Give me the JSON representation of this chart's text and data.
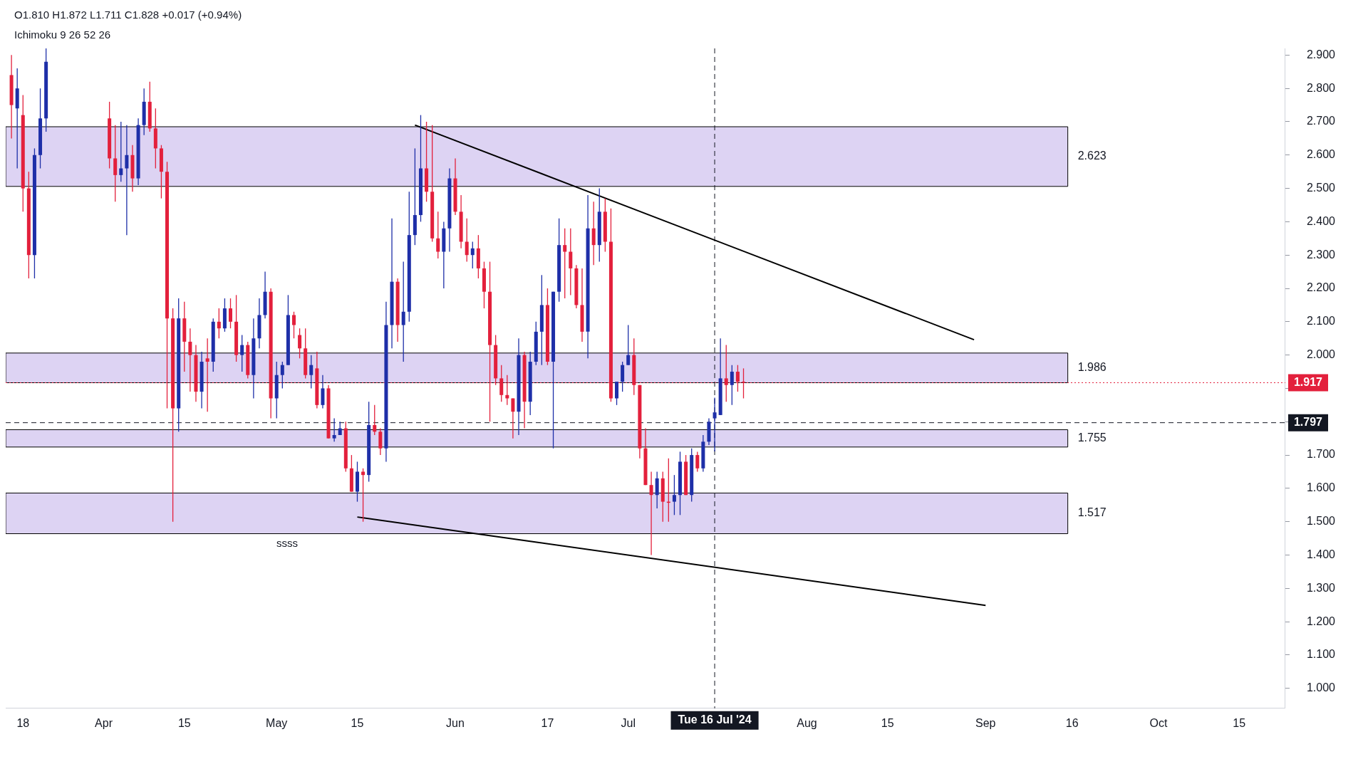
{
  "chart_data": {
    "type": "candlestick",
    "x": [
      "2024-03-16",
      "2024-03-17",
      "2024-03-18",
      "2024-03-19",
      "2024-03-20",
      "2024-03-21",
      "2024-03-22",
      "2024-04-02",
      "2024-04-03",
      "2024-04-04",
      "2024-04-05",
      "2024-04-06",
      "2024-04-07",
      "2024-04-08",
      "2024-04-09",
      "2024-04-10",
      "2024-04-11",
      "2024-04-12",
      "2024-04-13",
      "2024-04-14",
      "2024-04-15",
      "2024-04-16",
      "2024-04-17",
      "2024-04-18",
      "2024-04-19",
      "2024-04-20",
      "2024-04-21",
      "2024-04-22",
      "2024-04-23",
      "2024-04-24",
      "2024-04-25",
      "2024-04-26",
      "2024-04-27",
      "2024-04-28",
      "2024-04-29",
      "2024-04-30",
      "2024-05-01",
      "2024-05-02",
      "2024-05-03",
      "2024-05-04",
      "2024-05-05",
      "2024-05-06",
      "2024-05-07",
      "2024-05-08",
      "2024-05-09",
      "2024-05-10",
      "2024-05-11",
      "2024-05-12",
      "2024-05-13",
      "2024-05-14",
      "2024-05-15",
      "2024-05-16",
      "2024-05-17",
      "2024-05-18",
      "2024-05-19",
      "2024-05-20",
      "2024-05-21",
      "2024-05-22",
      "2024-05-23",
      "2024-05-24",
      "2024-05-25",
      "2024-05-26",
      "2024-05-27",
      "2024-05-28",
      "2024-05-29",
      "2024-05-30",
      "2024-05-31",
      "2024-06-01",
      "2024-06-02",
      "2024-06-03",
      "2024-06-04",
      "2024-06-05",
      "2024-06-06",
      "2024-06-07",
      "2024-06-08",
      "2024-06-09",
      "2024-06-10",
      "2024-06-11",
      "2024-06-12",
      "2024-06-13",
      "2024-06-14",
      "2024-06-15",
      "2024-06-16",
      "2024-06-17",
      "2024-06-18",
      "2024-06-19",
      "2024-06-20",
      "2024-06-21",
      "2024-06-22",
      "2024-06-23",
      "2024-06-24",
      "2024-06-25",
      "2024-06-26",
      "2024-06-27",
      "2024-06-28",
      "2024-06-29",
      "2024-06-30",
      "2024-07-01",
      "2024-07-02",
      "2024-07-03",
      "2024-07-04",
      "2024-07-05",
      "2024-07-06",
      "2024-07-07",
      "2024-07-08",
      "2024-07-09",
      "2024-07-10",
      "2024-07-11",
      "2024-07-12",
      "2024-07-13",
      "2024-07-14",
      "2024-07-15",
      "2024-07-16",
      "2024-07-17",
      "2024-07-18",
      "2024-07-19",
      "2024-07-20",
      "2024-07-21"
    ],
    "ohlc": [
      [
        2.84,
        2.9,
        2.65,
        2.75
      ],
      [
        2.74,
        2.86,
        2.56,
        2.8
      ],
      [
        2.72,
        2.78,
        2.43,
        2.5
      ],
      [
        2.5,
        2.55,
        2.23,
        2.3
      ],
      [
        2.3,
        2.62,
        2.23,
        2.6
      ],
      [
        2.6,
        2.8,
        2.56,
        2.71
      ],
      [
        2.71,
        2.92,
        2.67,
        2.88
      ],
      [
        2.71,
        2.76,
        2.56,
        2.59
      ],
      [
        2.59,
        2.69,
        2.46,
        2.54
      ],
      [
        2.54,
        2.7,
        2.52,
        2.56
      ],
      [
        2.56,
        2.69,
        2.36,
        2.6
      ],
      [
        2.6,
        2.63,
        2.49,
        2.53
      ],
      [
        2.53,
        2.71,
        2.51,
        2.69
      ],
      [
        2.69,
        2.8,
        2.66,
        2.76
      ],
      [
        2.76,
        2.82,
        2.67,
        2.68
      ],
      [
        2.68,
        2.74,
        2.56,
        2.62
      ],
      [
        2.62,
        2.63,
        2.47,
        2.55
      ],
      [
        2.55,
        2.58,
        1.84,
        2.11
      ],
      [
        2.11,
        2.14,
        1.5,
        1.84
      ],
      [
        1.84,
        2.17,
        1.77,
        2.11
      ],
      [
        2.11,
        2.16,
        1.95,
        2.04
      ],
      [
        2.04,
        2.08,
        1.89,
        2.0
      ],
      [
        2.0,
        2.03,
        1.86,
        1.89
      ],
      [
        1.89,
        2.01,
        1.84,
        1.98
      ],
      [
        1.99,
        2.05,
        1.83,
        1.98
      ],
      [
        1.98,
        2.11,
        1.95,
        2.1
      ],
      [
        2.1,
        2.14,
        2.05,
        2.08
      ],
      [
        2.08,
        2.17,
        2.07,
        2.14
      ],
      [
        2.14,
        2.17,
        2.08,
        2.1
      ],
      [
        2.1,
        2.18,
        1.98,
        2.0
      ],
      [
        2.0,
        2.06,
        1.95,
        2.03
      ],
      [
        2.03,
        2.04,
        1.93,
        1.94
      ],
      [
        1.94,
        2.11,
        1.87,
        2.05
      ],
      [
        2.05,
        2.17,
        2.02,
        2.12
      ],
      [
        2.12,
        2.25,
        2.11,
        2.19
      ],
      [
        2.19,
        2.2,
        1.81,
        1.87
      ],
      [
        1.87,
        1.98,
        1.81,
        1.94
      ],
      [
        1.94,
        1.98,
        1.9,
        1.97
      ],
      [
        1.97,
        2.18,
        1.97,
        2.12
      ],
      [
        2.12,
        2.13,
        2.05,
        2.09
      ],
      [
        2.06,
        2.08,
        1.99,
        2.02
      ],
      [
        2.02,
        2.08,
        1.93,
        1.94
      ],
      [
        1.94,
        2.0,
        1.9,
        1.97
      ],
      [
        1.96,
        2.01,
        1.84,
        1.85
      ],
      [
        1.85,
        1.94,
        1.84,
        1.9
      ],
      [
        1.9,
        1.91,
        1.75,
        1.75
      ],
      [
        1.75,
        1.81,
        1.74,
        1.76
      ],
      [
        1.76,
        1.8,
        1.76,
        1.78
      ],
      [
        1.78,
        1.8,
        1.65,
        1.66
      ],
      [
        1.66,
        1.7,
        1.59,
        1.59
      ],
      [
        1.59,
        1.68,
        1.56,
        1.65
      ],
      [
        1.65,
        1.66,
        1.5,
        1.64
      ],
      [
        1.64,
        1.86,
        1.62,
        1.79
      ],
      [
        1.79,
        1.85,
        1.76,
        1.77
      ],
      [
        1.77,
        1.78,
        1.7,
        1.72
      ],
      [
        1.72,
        2.16,
        1.68,
        2.09
      ],
      [
        2.09,
        2.41,
        2.02,
        2.22
      ],
      [
        2.22,
        2.23,
        2.04,
        2.09
      ],
      [
        2.09,
        2.28,
        1.98,
        2.13
      ],
      [
        2.13,
        2.49,
        2.1,
        2.36
      ],
      [
        2.36,
        2.62,
        2.33,
        2.42
      ],
      [
        2.42,
        2.72,
        2.4,
        2.56
      ],
      [
        2.56,
        2.7,
        2.46,
        2.49
      ],
      [
        2.49,
        2.69,
        2.34,
        2.35
      ],
      [
        2.35,
        2.43,
        2.29,
        2.31
      ],
      [
        2.31,
        2.4,
        2.2,
        2.38
      ],
      [
        2.38,
        2.56,
        2.31,
        2.53
      ],
      [
        2.53,
        2.59,
        2.42,
        2.43
      ],
      [
        2.43,
        2.48,
        2.32,
        2.34
      ],
      [
        2.34,
        2.41,
        2.28,
        2.3
      ],
      [
        2.3,
        2.34,
        2.26,
        2.32
      ],
      [
        2.32,
        2.36,
        2.23,
        2.26
      ],
      [
        2.26,
        2.28,
        2.14,
        2.19
      ],
      [
        2.19,
        2.28,
        1.8,
        2.03
      ],
      [
        2.03,
        2.06,
        1.91,
        1.93
      ],
      [
        1.93,
        1.97,
        1.86,
        1.88
      ],
      [
        1.88,
        1.94,
        1.85,
        1.87
      ],
      [
        1.87,
        1.87,
        1.75,
        1.83
      ],
      [
        1.83,
        2.05,
        1.76,
        2.0
      ],
      [
        2.0,
        2.01,
        1.78,
        1.86
      ],
      [
        1.86,
        2.01,
        1.82,
        1.98
      ],
      [
        1.98,
        2.1,
        1.97,
        2.07
      ],
      [
        2.07,
        2.24,
        1.97,
        2.15
      ],
      [
        2.15,
        2.2,
        1.97,
        1.98
      ],
      [
        1.98,
        2.19,
        1.72,
        2.19
      ],
      [
        2.19,
        2.41,
        2.16,
        2.33
      ],
      [
        2.33,
        2.38,
        2.17,
        2.31
      ],
      [
        2.31,
        2.38,
        2.18,
        2.26
      ],
      [
        2.26,
        2.27,
        2.14,
        2.15
      ],
      [
        2.15,
        2.26,
        2.04,
        2.07
      ],
      [
        2.07,
        2.48,
        1.99,
        2.38
      ],
      [
        2.38,
        2.46,
        2.27,
        2.33
      ],
      [
        2.33,
        2.5,
        2.28,
        2.43
      ],
      [
        2.43,
        2.47,
        2.31,
        2.34
      ],
      [
        2.34,
        2.44,
        1.86,
        1.87
      ],
      [
        1.87,
        1.92,
        1.85,
        1.92
      ],
      [
        1.92,
        1.98,
        1.89,
        1.97
      ],
      [
        1.97,
        2.09,
        1.97,
        2.0
      ],
      [
        2.0,
        2.05,
        1.88,
        1.91
      ],
      [
        1.91,
        1.91,
        1.69,
        1.72
      ],
      [
        1.72,
        1.78,
        1.61,
        1.61
      ],
      [
        1.61,
        1.65,
        1.4,
        1.58
      ],
      [
        1.58,
        1.65,
        1.54,
        1.63
      ],
      [
        1.63,
        1.65,
        1.5,
        1.56
      ],
      [
        1.56,
        1.69,
        1.5,
        1.56
      ],
      [
        1.56,
        1.64,
        1.52,
        1.58
      ],
      [
        1.58,
        1.71,
        1.52,
        1.68
      ],
      [
        1.68,
        1.7,
        1.58,
        1.58
      ],
      [
        1.58,
        1.72,
        1.56,
        1.7
      ],
      [
        1.7,
        1.71,
        1.65,
        1.66
      ],
      [
        1.66,
        1.76,
        1.65,
        1.74
      ],
      [
        1.74,
        1.81,
        1.73,
        1.8
      ],
      [
        1.81,
        1.872,
        1.711,
        1.828
      ],
      [
        1.82,
        2.05,
        1.82,
        1.93
      ],
      [
        1.93,
        2.03,
        1.86,
        1.91
      ],
      [
        1.91,
        1.97,
        1.85,
        1.95
      ],
      [
        1.95,
        1.97,
        1.89,
        1.92
      ],
      [
        1.92,
        1.96,
        1.87,
        1.917
      ]
    ],
    "colors": [
      "#e3203c",
      "#1e2fa8",
      "#e3203c",
      "#e3203c",
      "#1e2fa8",
      "#1e2fa8",
      "#1e2fa8",
      "#e3203c",
      "#e3203c",
      "#1e2fa8",
      "#1e2fa8",
      "#e3203c",
      "#1e2fa8",
      "#1e2fa8",
      "#e3203c",
      "#e3203c",
      "#e3203c",
      "#e3203c",
      "#e3203c",
      "#1e2fa8",
      "#e3203c",
      "#e3203c",
      "#e3203c",
      "#1e2fa8",
      "#e3203c",
      "#1e2fa8",
      "#e3203c",
      "#1e2fa8",
      "#e3203c",
      "#e3203c",
      "#1e2fa8",
      "#e3203c",
      "#1e2fa8",
      "#1e2fa8",
      "#1e2fa8",
      "#e3203c",
      "#1e2fa8",
      "#1e2fa8",
      "#1e2fa8",
      "#e3203c",
      "#e3203c",
      "#e3203c",
      "#1e2fa8",
      "#e3203c",
      "#1e2fa8",
      "#e3203c",
      "#1e2fa8",
      "#1e2fa8",
      "#e3203c",
      "#e3203c",
      "#1e2fa8",
      "#e3203c",
      "#1e2fa8",
      "#e3203c",
      "#e3203c",
      "#1e2fa8",
      "#1e2fa8",
      "#e3203c",
      "#1e2fa8",
      "#1e2fa8",
      "#1e2fa8",
      "#1e2fa8",
      "#e3203c",
      "#e3203c",
      "#e3203c",
      "#1e2fa8",
      "#1e2fa8",
      "#e3203c",
      "#e3203c",
      "#e3203c",
      "#1e2fa8",
      "#e3203c",
      "#e3203c",
      "#e3203c",
      "#e3203c",
      "#e3203c",
      "#e3203c",
      "#e3203c",
      "#1e2fa8",
      "#e3203c",
      "#1e2fa8",
      "#1e2fa8",
      "#1e2fa8",
      "#e3203c",
      "#1e2fa8",
      "#1e2fa8",
      "#e3203c",
      "#e3203c",
      "#e3203c",
      "#e3203c",
      "#1e2fa8",
      "#e3203c",
      "#1e2fa8",
      "#e3203c",
      "#e3203c",
      "#1e2fa8",
      "#1e2fa8",
      "#1e2fa8",
      "#e3203c",
      "#e3203c",
      "#e3203c",
      "#e3203c",
      "#1e2fa8",
      "#e3203c",
      "#e3203c",
      "#1e2fa8",
      "#1e2fa8",
      "#e3203c",
      "#1e2fa8",
      "#e3203c",
      "#1e2fa8",
      "#1e2fa8",
      "#1e2fa8",
      "#1e2fa8",
      "#e3203c",
      "#1e2fa8",
      "#e3203c",
      "#e3203c"
    ],
    "series": [
      {
        "type": "line",
        "color": "#000000",
        "x": [
          "2024-05-25",
          "2024-08-30"
        ],
        "values": [
          2.69,
          2.046
        ]
      },
      {
        "type": "line",
        "color": "#000000",
        "x": [
          "2024-05-15",
          "2024-09-01"
        ],
        "values": [
          1.514,
          1.249
        ]
      }
    ],
    "bands": [
      {
        "axis": "y",
        "from": 2.506,
        "to": 2.685,
        "label": "2.623",
        "color": "#ddd3f3"
      },
      {
        "axis": "y",
        "from": 1.917,
        "to": 2.006,
        "label": "1.986",
        "color": "#ddd3f3"
      },
      {
        "axis": "y",
        "from": 1.724,
        "to": 1.776,
        "label": "1.755",
        "color": "#ddd3f3"
      },
      {
        "axis": "y",
        "from": 1.464,
        "to": 1.586,
        "label": "1.517",
        "color": "#ddd3f3"
      }
    ],
    "ref_lines": [
      {
        "axis": "y",
        "value": 1.917,
        "label": "1.917",
        "color": "#e3203c",
        "line_style": "dotted"
      },
      {
        "axis": "y",
        "value": 1.797,
        "label": "1.797",
        "color": "#131722",
        "line_style": "dashed"
      },
      {
        "axis": "x",
        "value": "2024-07-16",
        "label": "Tue 16 Jul '24",
        "color": "#131722",
        "line_style": "dashed"
      }
    ],
    "annotations": [
      "O1.810 H1.872 L1.711 C1.828 +0.017 (+0.94%)",
      "Ichimoku 9 26 52 26",
      "ssss"
    ],
    "xlim": [
      "2024-03-15",
      "2024-10-23"
    ],
    "xticks": [
      {
        "value": "2024-03-18",
        "label": "18"
      },
      {
        "value": "2024-04-01",
        "label": "Apr"
      },
      {
        "value": "2024-04-15",
        "label": "15"
      },
      {
        "value": "2024-05-01",
        "label": "May"
      },
      {
        "value": "2024-05-15",
        "label": "15"
      },
      {
        "value": "2024-06-01",
        "label": "Jun"
      },
      {
        "value": "2024-06-17",
        "label": "17"
      },
      {
        "value": "2024-07-01",
        "label": "Jul"
      },
      {
        "value": "2024-08-01",
        "label": "Aug"
      },
      {
        "value": "2024-08-15",
        "label": "15"
      },
      {
        "value": "2024-09-01",
        "label": "Sep"
      },
      {
        "value": "2024-09-16",
        "label": "16"
      },
      {
        "value": "2024-10-01",
        "label": "Oct"
      },
      {
        "value": "2024-10-15",
        "label": "15"
      }
    ],
    "ylim": [
      0.94,
      2.92
    ],
    "yticks": [
      {
        "value": 1.0,
        "label": "1.000"
      },
      {
        "value": 1.1,
        "label": "1.100"
      },
      {
        "value": 1.2,
        "label": "1.200"
      },
      {
        "value": 1.3,
        "label": "1.300"
      },
      {
        "value": 1.4,
        "label": "1.400"
      },
      {
        "value": 1.5,
        "label": "1.500"
      },
      {
        "value": 1.6,
        "label": "1.600"
      },
      {
        "value": 1.7,
        "label": "1.700"
      },
      {
        "value": 1.8,
        "label": null
      },
      {
        "value": 1.9,
        "label": null
      },
      {
        "value": 2.0,
        "label": "2.000"
      },
      {
        "value": 2.1,
        "label": "2.100"
      },
      {
        "value": 2.2,
        "label": "2.200"
      },
      {
        "value": 2.3,
        "label": "2.300"
      },
      {
        "value": 2.4,
        "label": "2.400"
      },
      {
        "value": 2.5,
        "label": "2.500"
      },
      {
        "value": 2.6,
        "label": "2.600"
      },
      {
        "value": 2.7,
        "label": "2.700"
      },
      {
        "value": 2.8,
        "label": "2.800"
      },
      {
        "value": 2.9,
        "label": "2.900"
      }
    ],
    "grid": false,
    "legend": false
  }
}
